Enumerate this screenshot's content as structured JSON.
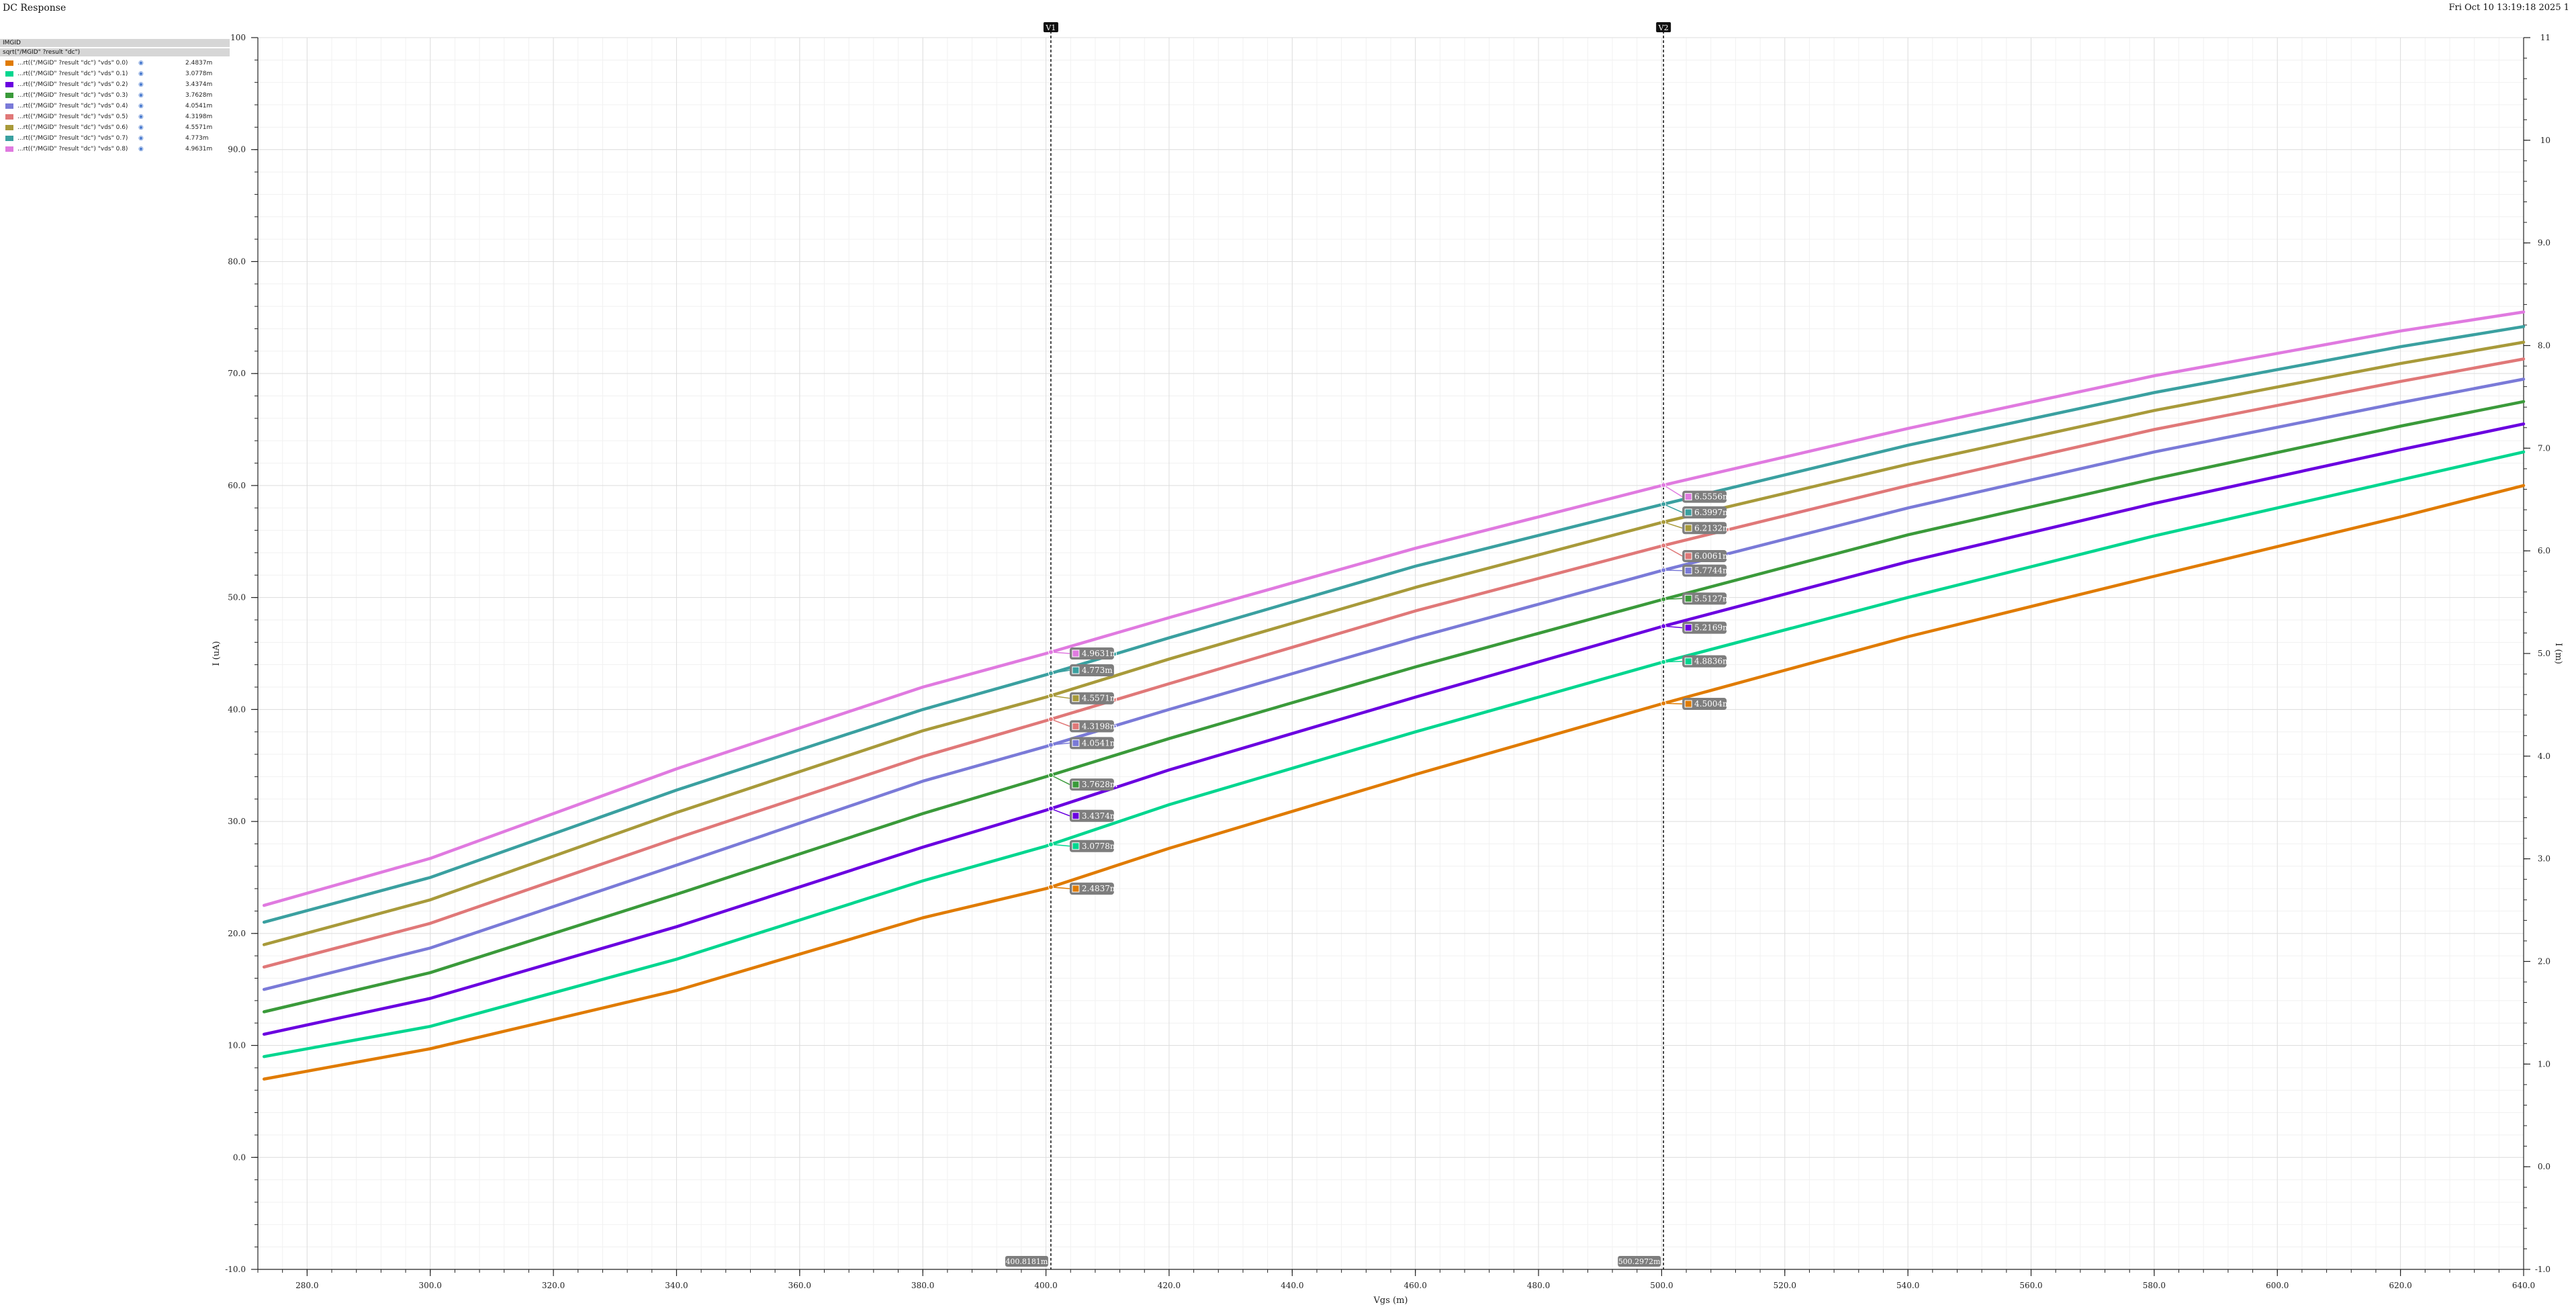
{
  "window": {
    "title": "DC Response",
    "datetime": "Fri Oct 10 13:19:18 2025  1"
  },
  "legend": {
    "header1": "IMGID",
    "header2": "sqrt(\"/MGID\" ?result \"dc\")",
    "items": [
      {
        "name": "...rt((\"/MGID\" ?result \"dc\") \"vds\" 0.0)",
        "value": "2.4837m",
        "color": "#e07b00"
      },
      {
        "name": "...rt((\"/MGID\" ?result \"dc\") \"vds\" 0.1)",
        "value": "3.0778m",
        "color": "#00d68f"
      },
      {
        "name": "...rt((\"/MGID\" ?result \"dc\") \"vds\" 0.2)",
        "value": "3.4374m",
        "color": "#6a00e0"
      },
      {
        "name": "...rt((\"/MGID\" ?result \"dc\") \"vds\" 0.3)",
        "value": "3.7628m",
        "color": "#3a9a3a"
      },
      {
        "name": "...rt((\"/MGID\" ?result \"dc\") \"vds\" 0.4)",
        "value": "4.0541m",
        "color": "#7a7ad8"
      },
      {
        "name": "...rt((\"/MGID\" ?result \"dc\") \"vds\" 0.5)",
        "value": "4.3198m",
        "color": "#e07878"
      },
      {
        "name": "...rt((\"/MGID\" ?result \"dc\") \"vds\" 0.6)",
        "value": "4.5571m",
        "color": "#a89a3a"
      },
      {
        "name": "...rt((\"/MGID\" ?result \"dc\") \"vds\" 0.7)",
        "value": "4.773m",
        "color": "#3aa0a0"
      },
      {
        "name": "...rt((\"/MGID\" ?result \"dc\") \"vds\" 0.8)",
        "value": "4.9631m",
        "color": "#e07ae0"
      }
    ]
  },
  "chart_data": {
    "type": "line",
    "xlabel": "Vgs (m)",
    "ylabel": "I (uA)",
    "y2label": "I (m)",
    "xlim": [
      272,
      640
    ],
    "ylim": [
      -10,
      100
    ],
    "y2lim": [
      -1,
      11
    ],
    "xticks": [
      "280.0",
      "300.0",
      "320.0",
      "340.0",
      "360.0",
      "380.0",
      "400.0",
      "420.0",
      "440.0",
      "460.0",
      "480.0",
      "500.0",
      "520.0",
      "540.0",
      "560.0",
      "580.0",
      "600.0",
      "620.0",
      "640.0"
    ],
    "yticks": [
      "-10.0",
      "0.0",
      "10.0",
      "20.0",
      "30.0",
      "40.0",
      "50.0",
      "60.0",
      "70.0",
      "80.0",
      "90.0",
      "100"
    ],
    "y2ticks": [
      "-1.0",
      "0.0",
      "1.0",
      "2.0",
      "3.0",
      "4.0",
      "5.0",
      "6.0",
      "7.0",
      "8.0",
      "9.0",
      "10",
      "11"
    ],
    "grid": true,
    "x": [
      273,
      300,
      340,
      380,
      400,
      420,
      460,
      500,
      540,
      580,
      620,
      640
    ],
    "series": [
      {
        "color": "#e07b00",
        "values": [
          7.0,
          9.7,
          14.9,
          21.4,
          24.0,
          27.6,
          34.2,
          40.5,
          46.5,
          51.9,
          57.2,
          60.0
        ]
      },
      {
        "color": "#00d68f",
        "values": [
          9.0,
          11.7,
          17.7,
          24.7,
          27.8,
          31.5,
          38.0,
          44.2,
          50.0,
          55.5,
          60.5,
          63.0
        ]
      },
      {
        "color": "#6a00e0",
        "values": [
          11.0,
          14.2,
          20.6,
          27.7,
          31.0,
          34.6,
          41.1,
          47.4,
          53.2,
          58.4,
          63.2,
          65.5
        ]
      },
      {
        "color": "#3a9a3a",
        "values": [
          13.0,
          16.5,
          23.5,
          30.7,
          34.0,
          37.4,
          43.8,
          49.8,
          55.6,
          60.6,
          65.3,
          67.5
        ]
      },
      {
        "color": "#7a7ad8",
        "values": [
          15.0,
          18.7,
          26.1,
          33.6,
          36.7,
          40.0,
          46.4,
          52.4,
          58.0,
          63.0,
          67.4,
          69.5
        ]
      },
      {
        "color": "#e07878",
        "values": [
          17.0,
          20.9,
          28.5,
          35.8,
          39.0,
          42.3,
          48.8,
          54.6,
          60.0,
          65.0,
          69.3,
          71.3
        ]
      },
      {
        "color": "#a89a3a",
        "values": [
          19.0,
          23.0,
          30.8,
          38.1,
          41.1,
          44.5,
          50.9,
          56.7,
          61.9,
          66.7,
          70.9,
          72.8
        ]
      },
      {
        "color": "#3aa0a0",
        "values": [
          21.0,
          25.0,
          32.8,
          40.0,
          43.1,
          46.4,
          52.8,
          58.3,
          63.6,
          68.3,
          72.4,
          74.2
        ]
      },
      {
        "color": "#e07ae0",
        "values": [
          22.5,
          26.7,
          34.7,
          42.0,
          45.0,
          48.2,
          54.4,
          60.0,
          65.1,
          69.8,
          73.8,
          75.5
        ]
      }
    ],
    "markers": [
      {
        "name": "V1",
        "x": 400.8,
        "readout": "400.8181m",
        "labels": [
          "2.4837m",
          "3.0778m",
          "3.4374m",
          "3.7628m",
          "4.0541m",
          "4.3198m",
          "4.5571m",
          "4.773m",
          "4.9631m"
        ],
        "label_values_uA": [
          24.0,
          27.8,
          30.5,
          33.3,
          37.0,
          38.5,
          41.0,
          43.5,
          45.0
        ]
      },
      {
        "name": "V2",
        "x": 500.3,
        "readout": "500.2972m",
        "labels": [
          "4.5004m",
          "4.8836m",
          "5.2169m",
          "5.5127m",
          "5.7744m",
          "6.0061m",
          "6.2132m",
          "6.3997m",
          "6.5556m"
        ],
        "label_values_uA": [
          40.5,
          44.3,
          47.3,
          49.9,
          52.4,
          53.7,
          56.2,
          57.6,
          59.0
        ]
      }
    ]
  }
}
